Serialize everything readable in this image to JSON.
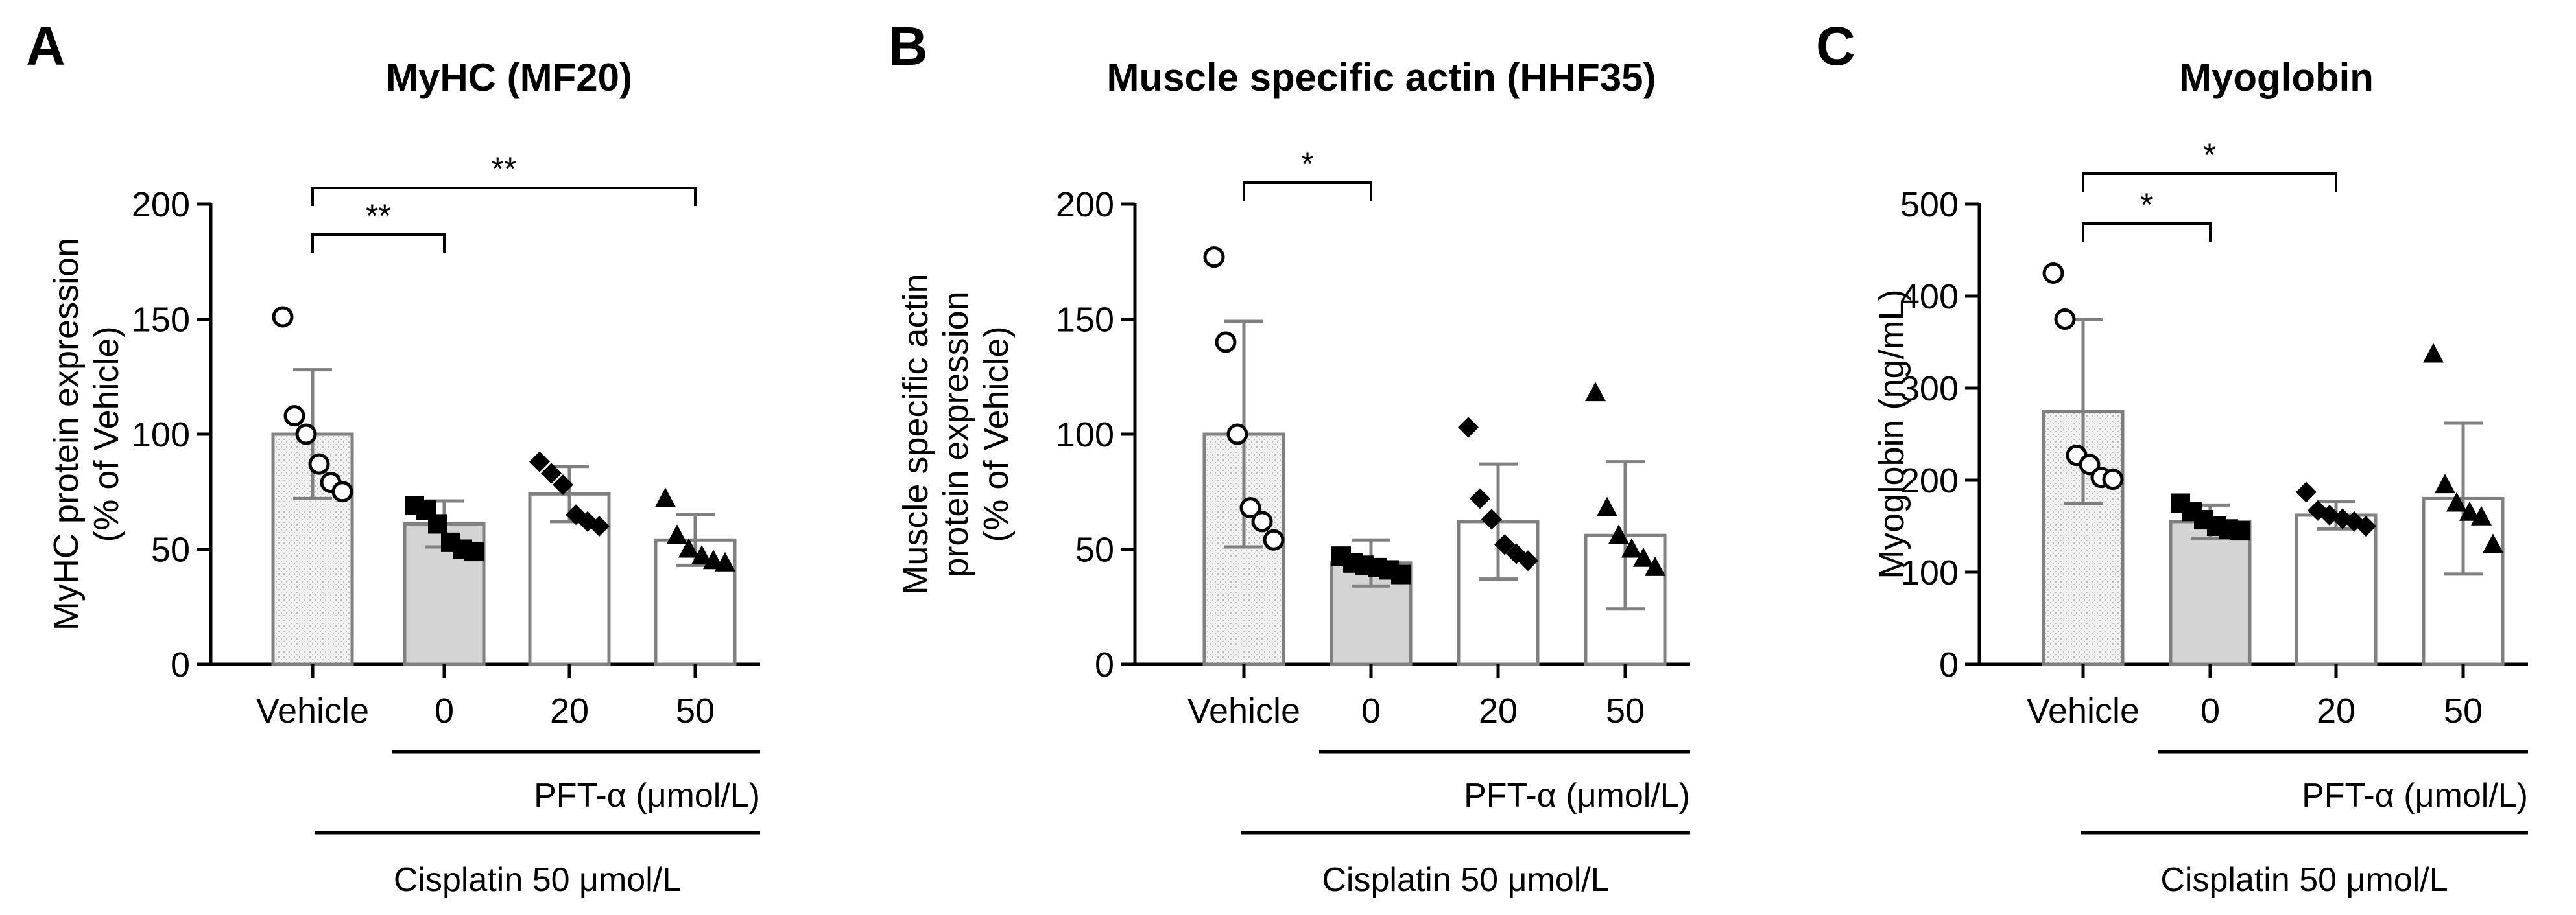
{
  "chart_data": [
    {
      "type": "bar",
      "panel": "A",
      "title": "MyHC (MF20)",
      "ylabel_lines": [
        "MyHC protein expression",
        "(% of Vehicle)"
      ],
      "xlabel": "",
      "ylim": [
        0,
        200
      ],
      "yticks": [
        "0",
        "50",
        "100",
        "150",
        "200"
      ],
      "categories": [
        "Vehicle",
        "0",
        "20",
        "50"
      ],
      "values": [
        100,
        61,
        74,
        54
      ],
      "errors": [
        28,
        10,
        12,
        11
      ],
      "points": [
        [
          151,
          108,
          100,
          87,
          79,
          75
        ],
        [
          69,
          67,
          61,
          53,
          50,
          49
        ],
        [
          88,
          83,
          78,
          65,
          62,
          60
        ],
        [
          72,
          56,
          50,
          47,
          45,
          44
        ]
      ],
      "markers": [
        "circle",
        "square",
        "diamond",
        "triangle"
      ],
      "significance": [
        {
          "from": 0,
          "to": 1,
          "label": "**"
        },
        {
          "from": 0,
          "to": 3,
          "label": "**"
        }
      ],
      "treatment_label": "PFT-α (μmol/L)",
      "condition_label": "Cisplatin 50 μmol/L"
    },
    {
      "type": "bar",
      "panel": "B",
      "title": "Muscle specific actin (HHF35)",
      "ylabel_lines": [
        "Muscle specific actin",
        "protein expression",
        "(% of Vehicle)"
      ],
      "xlabel": "",
      "ylim": [
        0,
        200
      ],
      "yticks": [
        "0",
        "50",
        "100",
        "150",
        "200"
      ],
      "categories": [
        "Vehicle",
        "0",
        "20",
        "50"
      ],
      "values": [
        100,
        44,
        62,
        56
      ],
      "errors": [
        49,
        10,
        25,
        32
      ],
      "points": [
        [
          177,
          140,
          100,
          68,
          62,
          54
        ],
        [
          47,
          44,
          43,
          42,
          41,
          39
        ],
        [
          103,
          72,
          63,
          52,
          48,
          45
        ],
        [
          118,
          68,
          56,
          50,
          46,
          42
        ]
      ],
      "markers": [
        "circle",
        "square",
        "diamond",
        "triangle"
      ],
      "significance": [
        {
          "from": 0,
          "to": 1,
          "label": "*"
        }
      ],
      "treatment_label": "PFT-α (μmol/L)",
      "condition_label": "Cisplatin 50 μmol/L"
    },
    {
      "type": "bar",
      "panel": "C",
      "title": "Myoglobin",
      "ylabel_lines": [
        "Myoglobin (ng/mL)"
      ],
      "xlabel": "",
      "ylim": [
        0,
        500
      ],
      "yticks": [
        "0",
        "100",
        "200",
        "300",
        "400",
        "500"
      ],
      "categories": [
        "Vehicle",
        "0",
        "20",
        "50"
      ],
      "values": [
        275,
        155,
        162,
        180
      ],
      "errors": [
        100,
        18,
        15,
        82
      ],
      "points": [
        [
          425,
          375,
          227,
          217,
          203,
          201
        ],
        [
          175,
          166,
          157,
          150,
          147,
          145
        ],
        [
          187,
          167,
          162,
          158,
          155,
          150
        ],
        [
          337,
          195,
          175,
          165,
          160,
          130
        ]
      ],
      "markers": [
        "circle",
        "square",
        "diamond",
        "triangle"
      ],
      "significance": [
        {
          "from": 0,
          "to": 1,
          "label": "*"
        },
        {
          "from": 0,
          "to": 2,
          "label": "*"
        }
      ],
      "treatment_label": "PFT-α (μmol/L)",
      "condition_label": "Cisplatin 50 μmol/L"
    }
  ]
}
